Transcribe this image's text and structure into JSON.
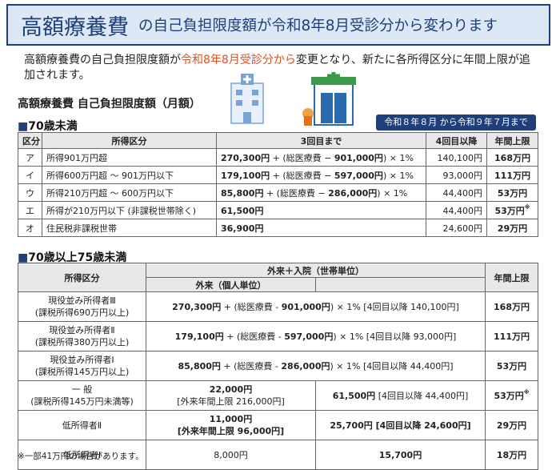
{
  "header": {
    "title": "高額療養費",
    "subtitle": "の自己負担限度額が令和8年8月受診分から変わります"
  },
  "intro": {
    "before": "高額療養費の自己負担限度額が",
    "highlight": "令和8年8月受診分から",
    "after": "変更となり、新たに各所得区分に年間上限が追加されます。"
  },
  "heading": "高額療養費 自己負担限度額（月額）",
  "period": "令和８年８月 から令和９年７月まで",
  "table1": {
    "title": "70歳未満",
    "headers": [
      "区分",
      "所得区分",
      "3回目まで",
      "4回目以降",
      "年間上限"
    ],
    "rows": [
      {
        "code": "ア",
        "income": "所得901万円超",
        "formula": {
          "base": "270,300円",
          "mid": "+ (総医療費 − ",
          "amount": "901,000円",
          "tail": ") × 1%"
        },
        "fourth": "140,100円",
        "annual": "168万円"
      },
      {
        "code": "イ",
        "income": "所得600万円超 〜 901万円以下",
        "formula": {
          "base": "179,100円",
          "mid": "+ (総医療費 − ",
          "amount": "597,000円",
          "tail": ") × 1%"
        },
        "fourth": "93,000円",
        "annual": "111万円"
      },
      {
        "code": "ウ",
        "income": "所得210万円超 〜 600万円以下",
        "formula": {
          "base": "85,800円",
          "mid": "+ (総医療費 − ",
          "amount": "286,000円",
          "tail": ") × 1%"
        },
        "fourth": "44,400円",
        "annual": "53万円"
      },
      {
        "code": "エ",
        "income": "所得が210万円以下 (非課税世帯除く)",
        "formula": {
          "base": "61,500円"
        },
        "fourth": "44,400円",
        "annual": "53万円",
        "note": "※"
      },
      {
        "code": "オ",
        "income": "住民税非課税世帯",
        "formula": {
          "base": "36,900円"
        },
        "fourth": "24,600円",
        "annual": "29万円"
      }
    ]
  },
  "table2": {
    "title": "70歳以上75歳未満",
    "headers": {
      "income": "所得区分",
      "combined": "外来＋入院（世帯単位）",
      "outpatient": "外来（個人単位）",
      "annual": "年間上限"
    },
    "rows": [
      {
        "category": "現役並み所得者Ⅲ",
        "category_sub": "(課税所得690万円以上)",
        "formula": {
          "base": "270,300円",
          "mid": "+ (総医療費 - ",
          "amount": "901,000円",
          "tail": ") × 1% [4回目以降 140,100円]"
        },
        "annual": "168万円"
      },
      {
        "category": "現役並み所得者Ⅱ",
        "category_sub": "(課税所得380万円以上)",
        "formula": {
          "base": "179,100円",
          "mid": "+ (総医療費 - ",
          "amount": "597,000円",
          "tail": ") × 1% [4回目以降 93,000円]"
        },
        "annual": "111万円"
      },
      {
        "category": "現役並み所得者Ⅰ",
        "category_sub": "(課税所得145万円以上)",
        "formula": {
          "base": "85,800円",
          "mid": "+ (総医療費 - ",
          "amount": "286,000円",
          "tail": ") × 1% [4回目以降 44,400円]"
        },
        "annual": "53万円"
      },
      {
        "category": "一 般",
        "category_sub": "(課税所得145万円未満等)",
        "outpatient": "22,000円",
        "outpatient_sub": "[外来年間上限 216,000円]",
        "combined": "61,500円",
        "combined_sub": "[4回目以降 44,400円]",
        "annual": "53万円",
        "note": "※"
      },
      {
        "category": "低所得者Ⅱ",
        "outpatient": "11,000円",
        "outpatient_sub": "[外来年間上限 96,000円]",
        "combined": "25,700円",
        "combined_sub": "[4回目以降 24,600円]",
        "annual": "29万円"
      },
      {
        "category": "低所得者Ⅰ",
        "outpatient": "8,000円",
        "combined": "15,700円",
        "annual": "18万円"
      }
    ]
  },
  "footnote": "※一部41万円の場合があります。"
}
